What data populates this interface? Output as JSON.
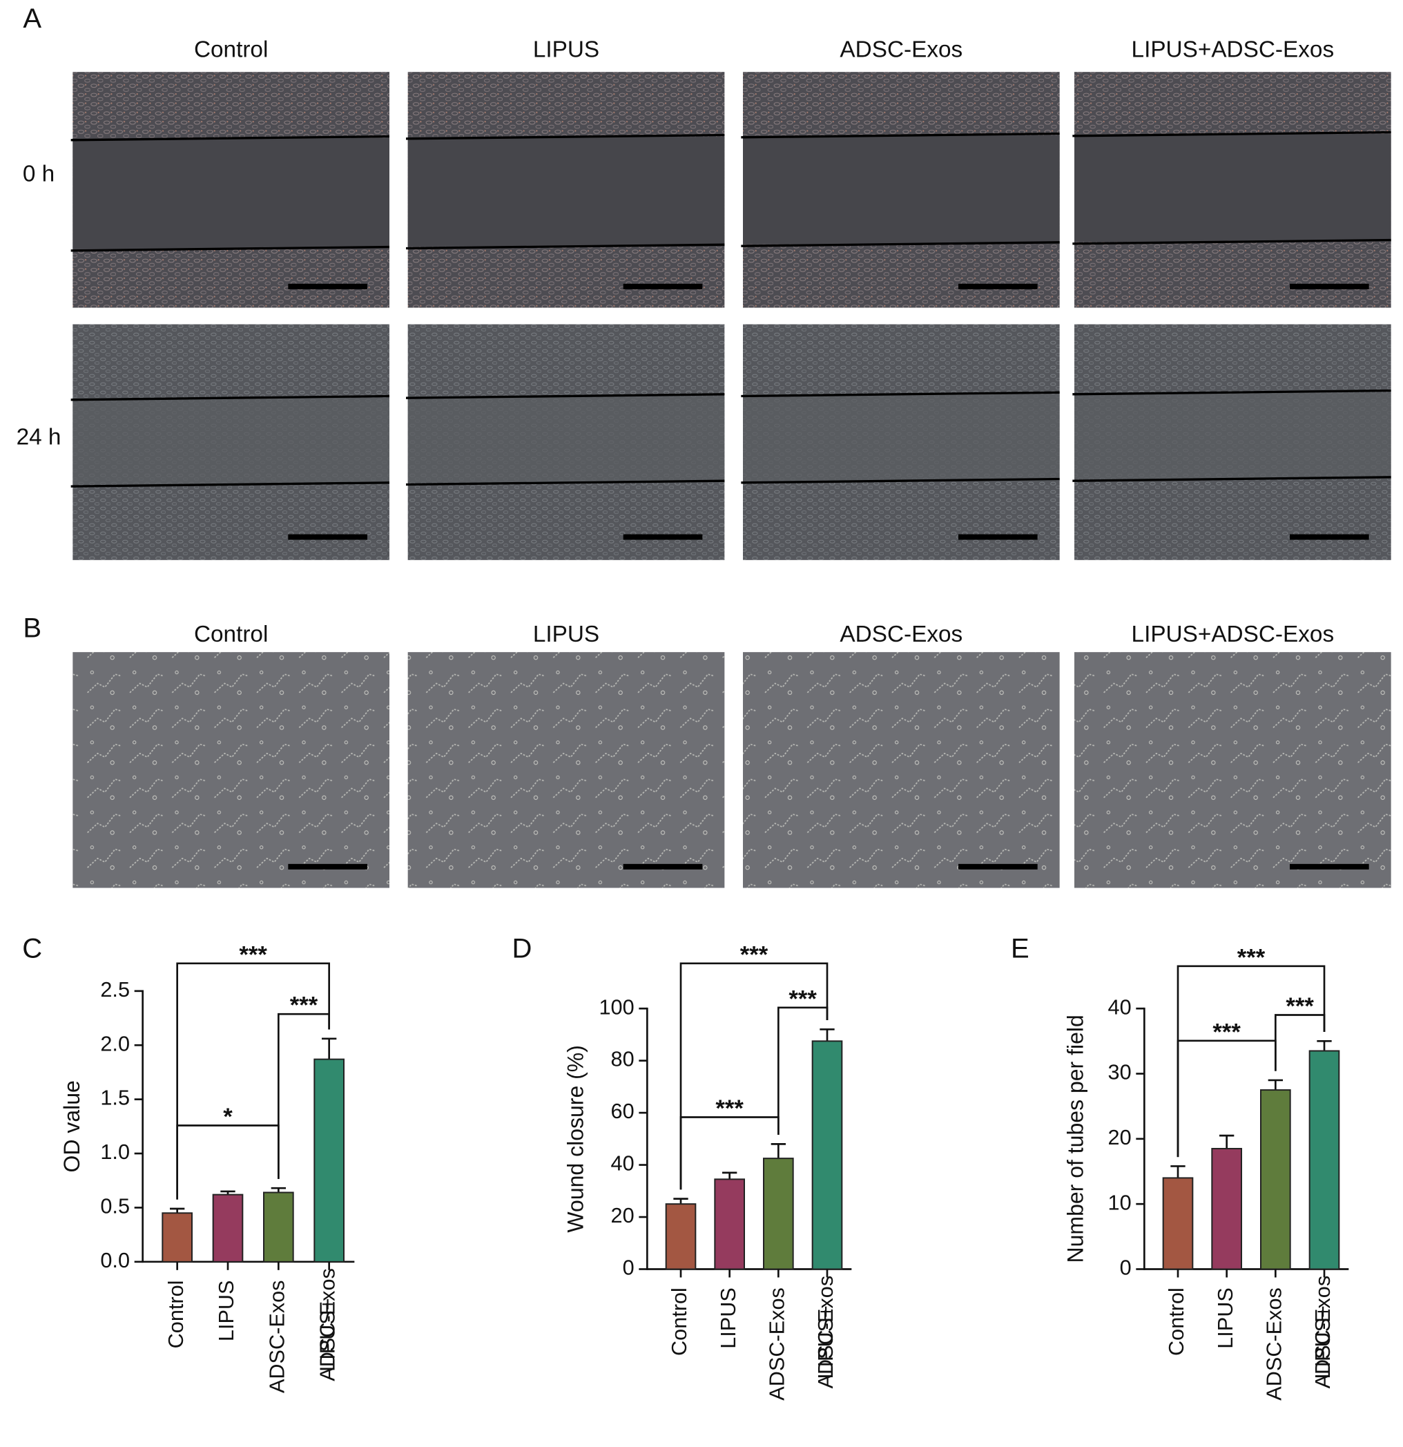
{
  "panels": {
    "A": {
      "label": "A",
      "columns": [
        "Control",
        "LIPUS",
        "ADSC-Exos",
        "LIPUS+ADSC-Exos"
      ],
      "rows": [
        "0 h",
        "24 h"
      ]
    },
    "B": {
      "label": "B",
      "columns": [
        "Control",
        "LIPUS",
        "ADSC-Exos",
        "LIPUS+ADSC-Exos"
      ]
    }
  },
  "chart_data": [
    {
      "type": "bar",
      "panel": "C",
      "y_label": "OD value",
      "categories": [
        "Control",
        "LIPUS",
        "ADSC-Exos",
        "LIPUS+\nADSC-Exos"
      ],
      "values": [
        0.45,
        0.62,
        0.64,
        1.87
      ],
      "errors": [
        0.04,
        0.03,
        0.04,
        0.19
      ],
      "colors": [
        "#a35742",
        "#953b5e",
        "#5f7c3c",
        "#318a6e"
      ],
      "ylim": [
        0,
        2.5
      ],
      "yticks": [
        {
          "value": 0,
          "label": "0.0"
        },
        0.5,
        {
          "value": 1,
          "label": "1.0"
        },
        1.5,
        {
          "value": 2,
          "label": "2.0"
        },
        2.5
      ],
      "annotations": [
        {
          "groups": [
            0,
            3
          ],
          "label": "***"
        },
        {
          "groups": [
            2,
            3
          ],
          "label": "***"
        },
        {
          "groups": [
            0,
            2
          ],
          "label": "*"
        }
      ]
    },
    {
      "type": "bar",
      "panel": "D",
      "y_label": "Wound closure (%)",
      "categories": [
        "Control",
        "LIPUS",
        "ADSC-Exos",
        "LIPUS+\nADSC-Exos"
      ],
      "values": [
        25,
        34.5,
        42.5,
        87.5
      ],
      "errors": [
        2,
        2.5,
        5.5,
        4.5
      ],
      "colors": [
        "#a35742",
        "#953b5e",
        "#5f7c3c",
        "#318a6e"
      ],
      "ylim": [
        0,
        100
      ],
      "yticks": [
        0,
        20,
        40,
        60,
        80,
        100
      ],
      "annotations": [
        {
          "groups": [
            0,
            3
          ],
          "label": "***"
        },
        {
          "groups": [
            2,
            3
          ],
          "label": "***"
        },
        {
          "groups": [
            0,
            2
          ],
          "label": "***"
        }
      ]
    },
    {
      "type": "bar",
      "panel": "E",
      "y_label": "Number of tubes per field",
      "categories": [
        "Control",
        "LIPUS",
        "ADSC-Exos",
        "LIPUS+\nADSC-Exos"
      ],
      "values": [
        14,
        18.5,
        27.5,
        33.5
      ],
      "errors": [
        1.8,
        2,
        1.5,
        1.5
      ],
      "colors": [
        "#a35742",
        "#953b5e",
        "#5f7c3c",
        "#318a6e"
      ],
      "ylim": [
        0,
        40
      ],
      "yticks": [
        0,
        10,
        20,
        30,
        40
      ],
      "annotations": [
        {
          "groups": [
            0,
            3
          ],
          "label": "***"
        },
        {
          "groups": [
            2,
            3
          ],
          "label": "***"
        },
        {
          "groups": [
            0,
            2
          ],
          "label": "***"
        }
      ]
    }
  ]
}
